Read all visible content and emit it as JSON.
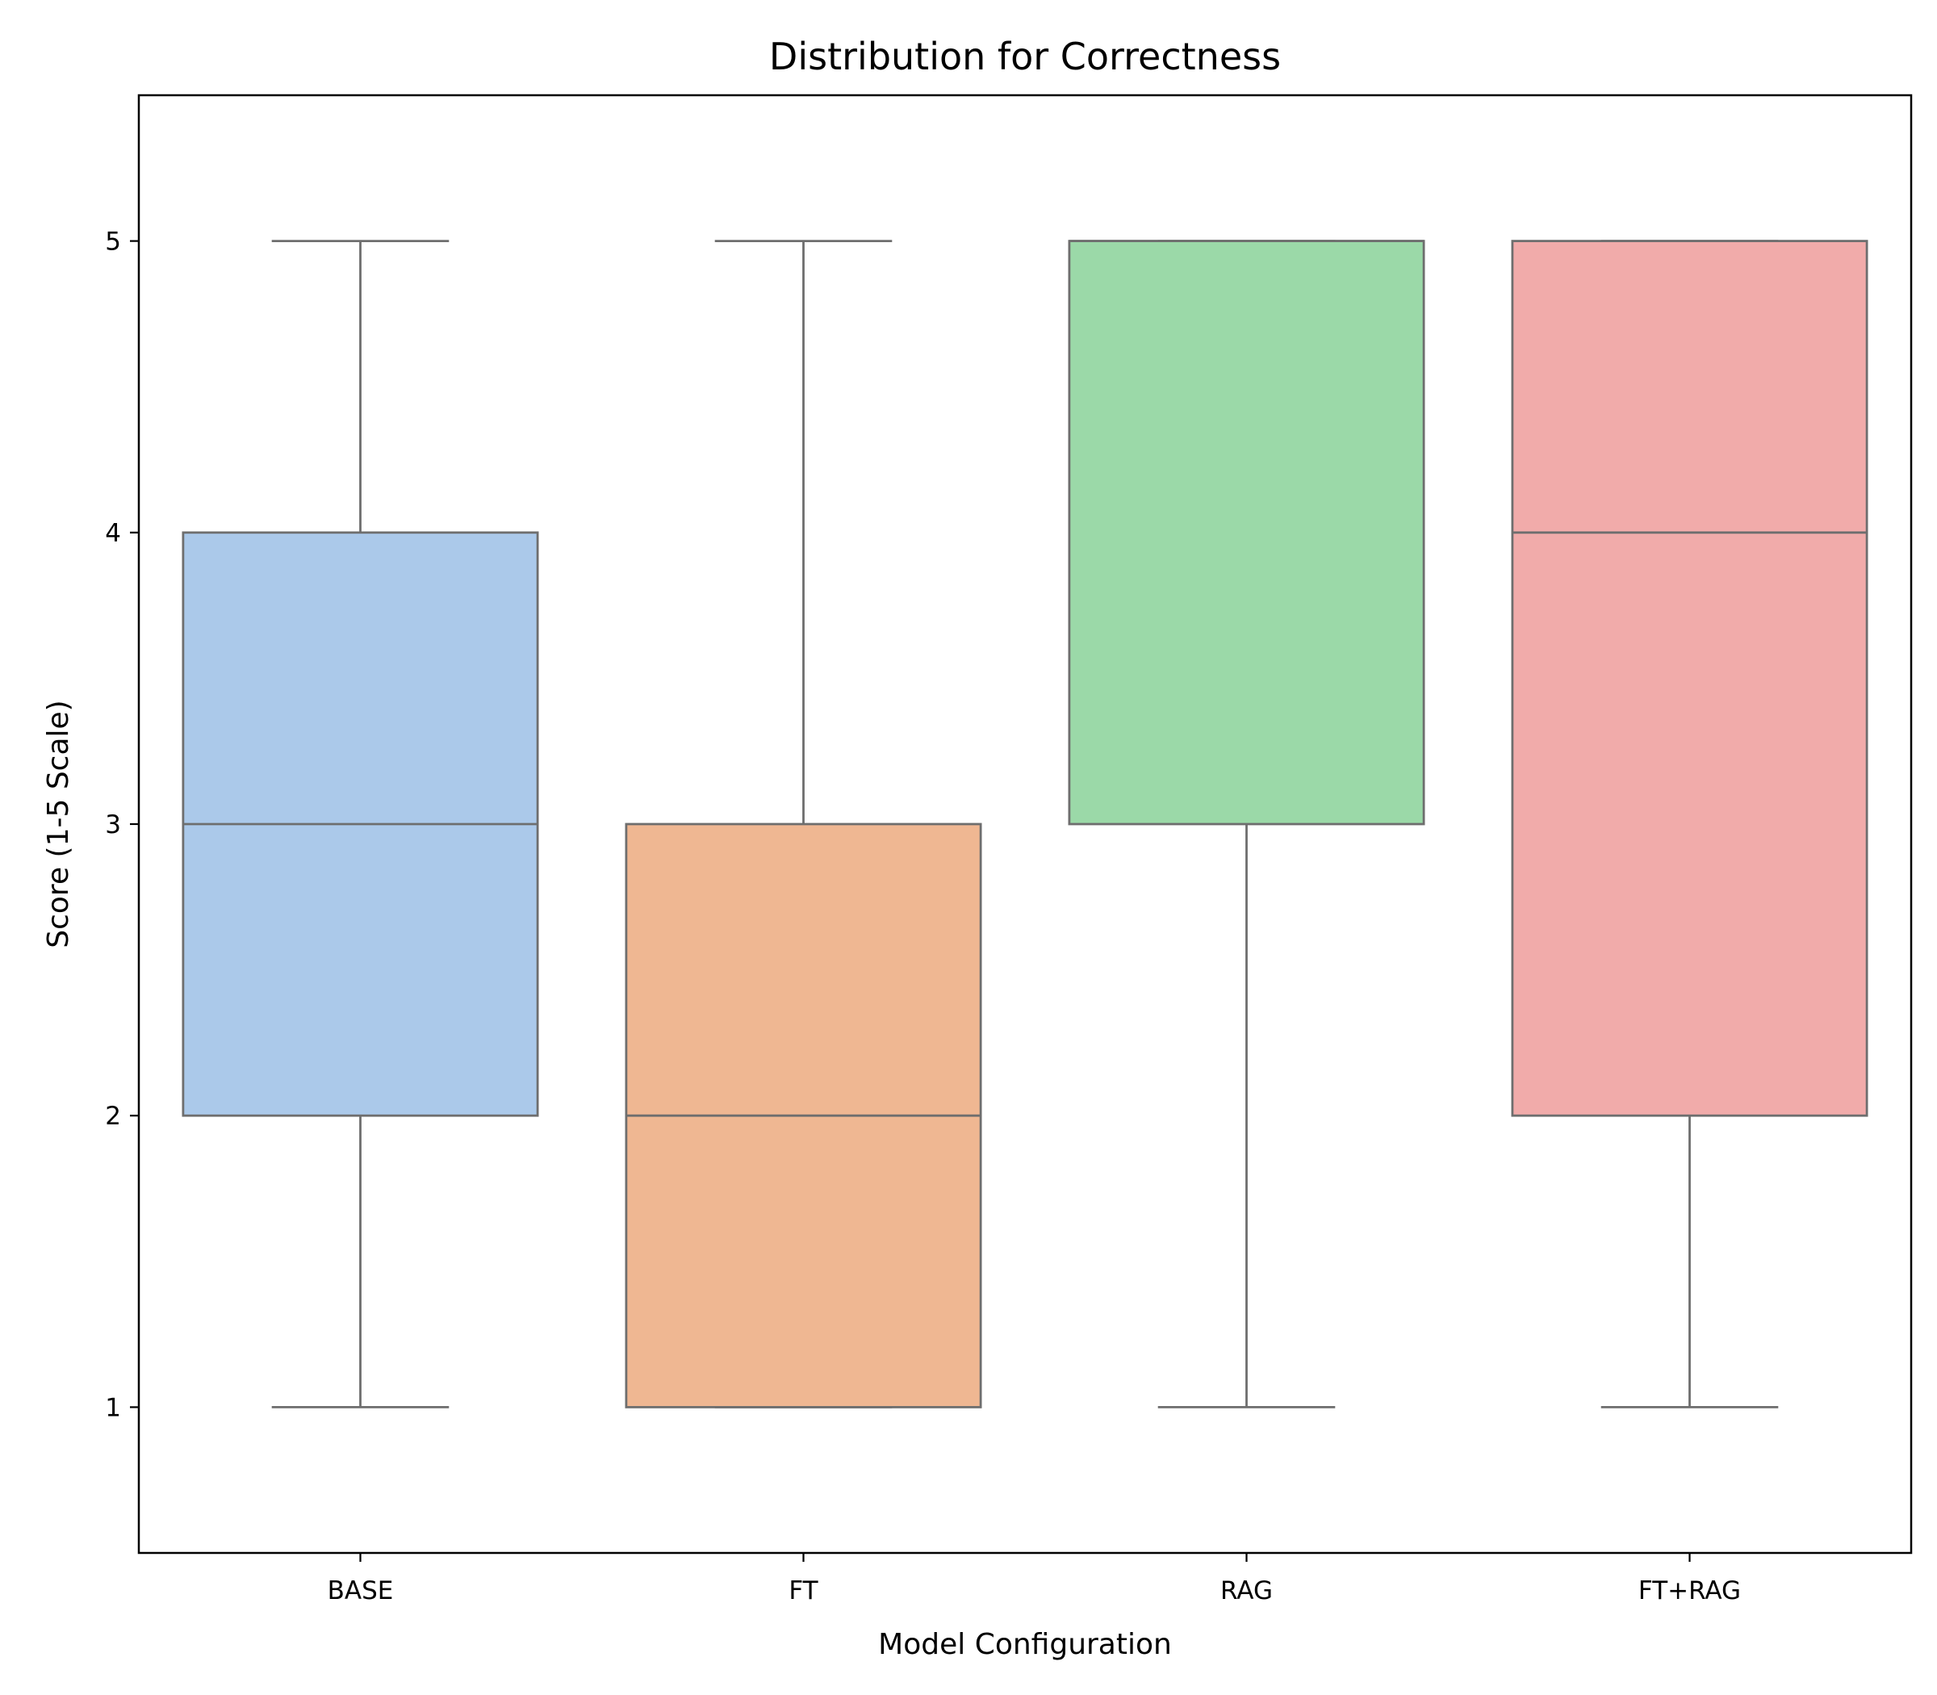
{
  "chart_data": {
    "type": "box",
    "title": "Distribution for Correctness",
    "xlabel": "Model Configuration",
    "ylabel": "Score (1-5 Scale)",
    "ylim": [
      0.5,
      5.5
    ],
    "yticks": [
      1,
      2,
      3,
      4,
      5
    ],
    "grid": false,
    "legend": "none",
    "categories": [
      "BASE",
      "FT",
      "RAG",
      "FT+RAG"
    ],
    "boxes": [
      {
        "category": "BASE",
        "whisker_low": 1,
        "q1": 2,
        "median": 3,
        "q3": 4,
        "whisker_high": 5,
        "color": "#abc9ea"
      },
      {
        "category": "FT",
        "whisker_low": 1,
        "q1": 1,
        "median": 2,
        "q3": 3,
        "whisker_high": 5,
        "color": "#efb792"
      },
      {
        "category": "RAG",
        "whisker_low": 1,
        "q1": 3,
        "median": 5,
        "q3": 5,
        "whisker_high": 5,
        "color": "#9bd9a8"
      },
      {
        "category": "FT+RAG",
        "whisker_low": 1,
        "q1": 2,
        "median": 4,
        "q3": 5,
        "whisker_high": 5,
        "color": "#f1abaa"
      }
    ],
    "line_color": "#6e6e6e"
  }
}
